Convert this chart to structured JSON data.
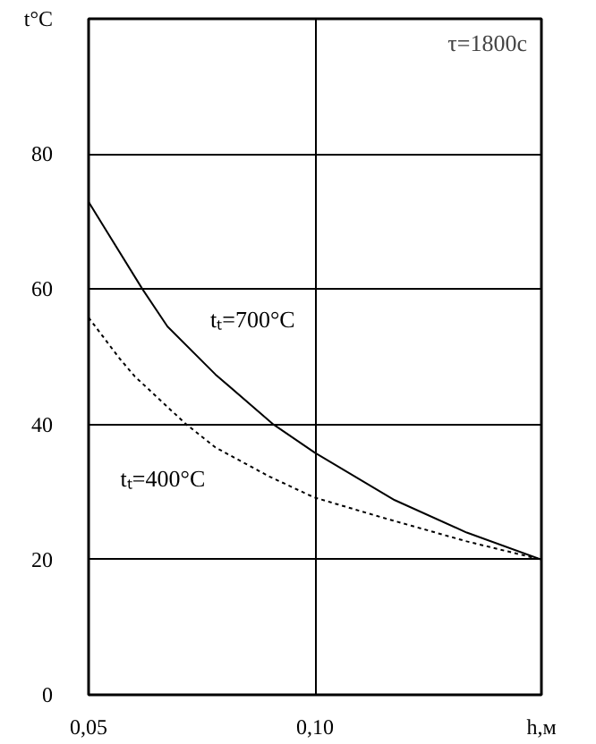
{
  "chart_data": {
    "type": "line",
    "xlabel": "h,м",
    "ylabel": "t°C",
    "xlim": [
      0.05,
      0.15
    ],
    "ylim": [
      0,
      100
    ],
    "xticks": [
      {
        "value": 0.05,
        "label": "0,05"
      },
      {
        "value": 0.1,
        "label": "0,10"
      }
    ],
    "yticks": [
      0,
      20,
      40,
      60,
      80
    ],
    "grid": true,
    "series": [
      {
        "name": "tₜ=700°C",
        "color": "#000000",
        "line_style": "solid",
        "x": [
          0.05,
          0.0619,
          0.0674,
          0.078,
          0.0906,
          0.1,
          0.1176,
          0.1335,
          0.15
        ],
        "values": [
          72.9,
          60,
          54.5,
          47.4,
          40.1,
          35.8,
          28.8,
          24,
          20
        ]
      },
      {
        "name": "tₜ=400°C",
        "color": "#000000",
        "line_style": "dotted",
        "x": [
          0.05,
          0.0569,
          0.0602,
          0.0714,
          0.078,
          0.0899,
          0.0998,
          0.115,
          0.1335,
          0.15
        ],
        "values": [
          55.8,
          49.7,
          47.1,
          40.1,
          36.6,
          32.3,
          29.2,
          26.2,
          22.7,
          20
        ]
      }
    ],
    "annotations": [
      "τ=1800c"
    ]
  }
}
